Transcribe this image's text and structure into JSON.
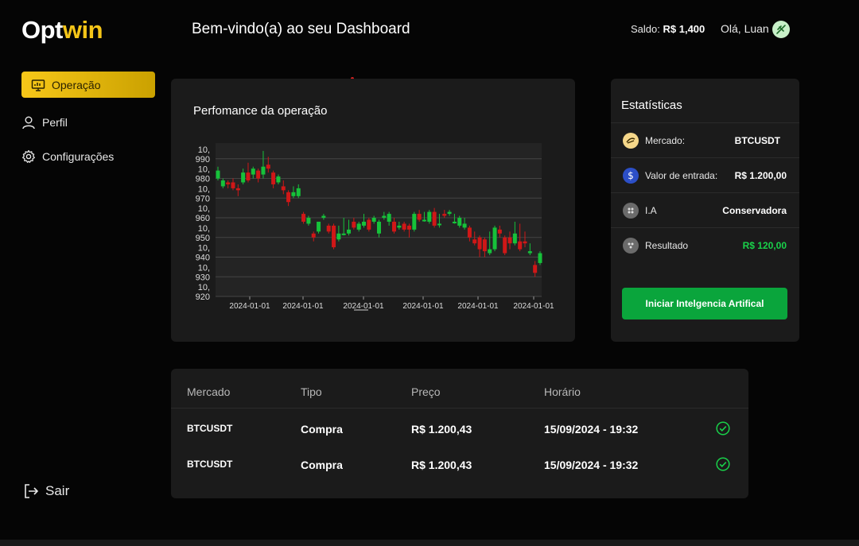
{
  "logo": {
    "part1": "Opt",
    "part2": "win"
  },
  "header": {
    "title": "Bem-vindo(a) ao seu Dashboard",
    "balance_label": "Saldo:",
    "balance_value": "R$ 1,400",
    "greeting": "Olá, Luan"
  },
  "sidebar": {
    "items": [
      {
        "label": "Operação",
        "icon": "presentation-chart-icon",
        "active": true
      },
      {
        "label": "Perfil",
        "icon": "user-icon"
      },
      {
        "label": "Configurações",
        "icon": "gear-icon"
      }
    ],
    "logout_label": "Sair"
  },
  "chart_data": {
    "type": "candlestick",
    "title": "Perfomance da operação",
    "ylim": [
      920,
      1000
    ],
    "y_ticks": [
      {
        "value": 990,
        "label": [
          "10,",
          "990"
        ]
      },
      {
        "value": 980,
        "label": [
          "10,",
          "980"
        ]
      },
      {
        "value": 970,
        "label": [
          "10,",
          "970"
        ]
      },
      {
        "value": 960,
        "label": [
          "10,",
          "960"
        ]
      },
      {
        "value": 950,
        "label": [
          "10,",
          "950"
        ]
      },
      {
        "value": 940,
        "label": [
          "10,",
          "940"
        ]
      },
      {
        "value": 930,
        "label": [
          "10,",
          "930"
        ]
      },
      {
        "value": 920,
        "label": [
          "10,",
          "920"
        ]
      }
    ],
    "x_tick_labels": [
      "2024-01-01",
      "2024-01-01",
      "2024-01-01",
      "2024-01-01",
      "2024-01-01",
      "2024-01-01"
    ],
    "candles": [
      [
        980,
        984,
        979,
        986
      ],
      [
        976,
        979,
        975,
        980
      ],
      [
        978,
        977,
        975,
        979
      ],
      [
        978,
        975,
        974,
        980
      ],
      [
        975,
        974,
        971,
        977
      ],
      [
        978,
        983,
        977,
        985
      ],
      [
        983,
        979,
        978,
        988
      ],
      [
        982,
        985,
        980,
        986
      ],
      [
        984,
        980,
        978,
        985
      ],
      [
        982,
        986,
        980,
        994
      ],
      [
        987,
        985,
        983,
        991
      ],
      [
        983,
        977,
        975,
        984
      ],
      [
        978,
        981,
        977,
        982
      ],
      [
        976,
        974,
        972,
        979
      ],
      [
        973,
        968,
        966,
        974
      ],
      [
        971,
        973,
        970,
        976
      ],
      [
        971,
        975,
        970,
        977
      ],
      [
        962,
        958,
        957,
        963
      ],
      [
        957,
        960,
        956,
        961
      ],
      [
        952,
        950,
        948,
        953
      ],
      [
        953,
        958,
        952,
        958
      ],
      [
        960,
        961,
        959,
        962
      ],
      [
        956,
        953,
        952,
        957
      ],
      [
        956,
        945,
        944,
        957
      ],
      [
        949,
        952,
        948,
        956
      ],
      [
        952,
        952,
        951,
        960
      ],
      [
        952,
        954,
        951,
        959
      ],
      [
        958,
        955,
        954,
        960
      ],
      [
        954,
        957,
        953,
        958
      ],
      [
        956,
        958,
        955,
        962
      ],
      [
        959,
        954,
        953,
        960
      ],
      [
        958,
        960,
        957,
        961
      ],
      [
        952,
        958,
        950,
        959
      ],
      [
        960,
        961,
        959,
        963
      ],
      [
        958,
        962,
        956,
        963
      ],
      [
        958,
        953,
        952,
        960
      ],
      [
        955,
        956,
        954,
        958
      ],
      [
        957,
        954,
        953,
        958
      ],
      [
        956,
        954,
        950,
        957
      ],
      [
        954,
        962,
        953,
        963
      ],
      [
        962,
        959,
        958,
        964
      ],
      [
        959,
        959,
        958,
        963
      ],
      [
        958,
        963,
        957,
        964
      ],
      [
        963,
        956,
        955,
        965
      ],
      [
        957,
        957,
        955,
        962
      ],
      [
        962,
        961,
        960,
        964
      ],
      [
        962,
        963,
        961,
        964
      ],
      [
        958,
        958,
        957,
        962
      ],
      [
        956,
        960,
        955,
        961
      ],
      [
        955,
        957,
        954,
        960
      ],
      [
        955,
        950,
        948,
        956
      ],
      [
        949,
        947,
        946,
        953
      ],
      [
        950,
        944,
        940,
        951
      ],
      [
        949,
        943,
        940,
        950
      ],
      [
        942,
        944,
        941,
        953
      ],
      [
        944,
        955,
        943,
        956
      ],
      [
        954,
        952,
        950,
        956
      ],
      [
        950,
        942,
        941,
        951
      ],
      [
        950,
        947,
        944,
        953
      ],
      [
        947,
        952,
        946,
        958
      ],
      [
        948,
        944,
        943,
        957
      ],
      [
        948,
        947,
        945,
        953
      ],
      [
        942,
        943,
        941,
        947
      ],
      [
        936,
        932,
        930,
        938
      ],
      [
        937,
        942,
        936,
        943
      ]
    ],
    "colors": {
      "up": "#16c23a",
      "down": "#d01717"
    },
    "grid": true
  },
  "stats": {
    "title": "Estatísticas",
    "rows": [
      {
        "label": "Mercado:",
        "value": "BTCUSDT",
        "icon": "bitcoin-coin-icon"
      },
      {
        "label": "Valor de entrada:",
        "value": "R$ 1.200,00",
        "icon": "dollar-coin-icon"
      },
      {
        "label": "I.A",
        "value": "Conservadora",
        "icon": "robot-icon"
      },
      {
        "label": "Resultado",
        "value": "R$ 120,00",
        "icon": "result-icon"
      }
    ],
    "button_label": "Iniciar Intelgencia Artifical"
  },
  "table": {
    "headers": [
      "Mercado",
      "Tipo",
      "Preço",
      "Horário"
    ],
    "rows": [
      {
        "mercado": "BTCUSDT",
        "tipo": "Compra",
        "preco": "R$ 1.200,43",
        "horario": "15/09/2024 - 19:32",
        "status_icon": "check-circle-icon"
      },
      {
        "mercado": "BTCUSDT",
        "tipo": "Compra",
        "preco": "R$ 1.200,43",
        "horario": "15/09/2024 - 19:32",
        "status_icon": "check-circle-icon"
      }
    ]
  },
  "colors": {
    "accent": "#f5c518",
    "success": "#19d14a",
    "button": "#0aa53c"
  }
}
